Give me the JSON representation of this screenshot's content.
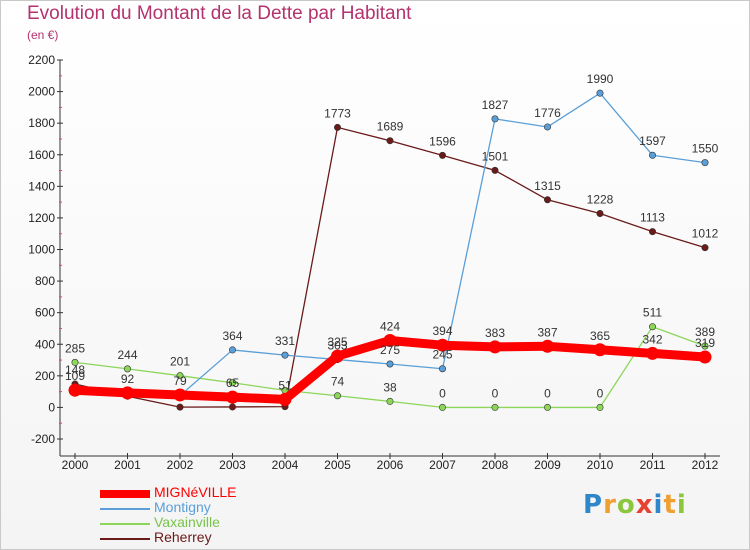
{
  "header": {
    "title": "Evolution du Montant de la Dette par Habitant",
    "subtitle": "(en €)"
  },
  "logo": {
    "text": "Proxiti",
    "letters": [
      "P",
      "r",
      "o",
      "x",
      "i",
      "t",
      "i"
    ],
    "colors": [
      "#2f86c8",
      "#f0a030",
      "#8cc63f",
      "#e8402f",
      "#2f86c8",
      "#f0a030",
      "#8cc63f"
    ]
  },
  "chart_data": {
    "type": "line",
    "title": "Evolution du Montant de la Dette par Habitant",
    "subtitle": "(en €)",
    "xlabel": "",
    "ylabel": "",
    "x": [
      "2000",
      "2001",
      "2002",
      "2003",
      "2004",
      "2005",
      "2006",
      "2007",
      "2008",
      "2009",
      "2010",
      "2011",
      "2012"
    ],
    "ylim": [
      -200,
      2200
    ],
    "yticks": [
      -200,
      0,
      200,
      400,
      600,
      800,
      1000,
      1200,
      1400,
      1600,
      1800,
      2000,
      2200
    ],
    "grid": false,
    "legend_position": "bottom-left",
    "series": [
      {
        "name": "Reherrey",
        "color": "#6b1a1a",
        "values": [
          148,
          71,
          2,
          3,
          5,
          1773,
          1689,
          1596,
          1501,
          1315,
          1228,
          1113,
          1012
        ],
        "labels": [
          "148",
          "",
          "",
          "",
          "",
          "1773",
          "1689",
          "1596",
          "1501",
          "1315",
          "1228",
          "1113",
          "1012"
        ]
      },
      {
        "name": "Vaxainville",
        "color": "#8cd65a",
        "values": [
          285,
          244,
          201,
          156,
          108,
          74,
          38,
          0,
          0,
          0,
          0,
          511,
          389
        ],
        "labels": [
          "285",
          "244",
          "201",
          "",
          "",
          "74",
          "38",
          "0",
          "0",
          "0",
          "0",
          "511",
          "389"
        ]
      },
      {
        "name": "Montigny",
        "color": "#5a9fd8",
        "values": [
          90,
          80,
          75,
          364,
          331,
          303,
          275,
          245,
          1827,
          1776,
          1990,
          1597,
          1550
        ],
        "labels": [
          "",
          "",
          "",
          "364",
          "331",
          "303",
          "275",
          "245",
          "1827",
          "1776",
          "1990",
          "1597",
          "1550"
        ]
      },
      {
        "name": "MIGNéVILLE",
        "color": "#ff0000",
        "values": [
          109,
          92,
          79,
          65,
          51,
          325,
          424,
          394,
          383,
          387,
          365,
          342,
          319
        ],
        "labels": [
          "109",
          "92",
          "79",
          "65",
          "51",
          "325",
          "424",
          "394",
          "383",
          "387",
          "365",
          "342",
          "319"
        ]
      }
    ],
    "legend_order": [
      "MIGNéVILLE",
      "Montigny",
      "Vaxainville",
      "Reherrey"
    ]
  }
}
